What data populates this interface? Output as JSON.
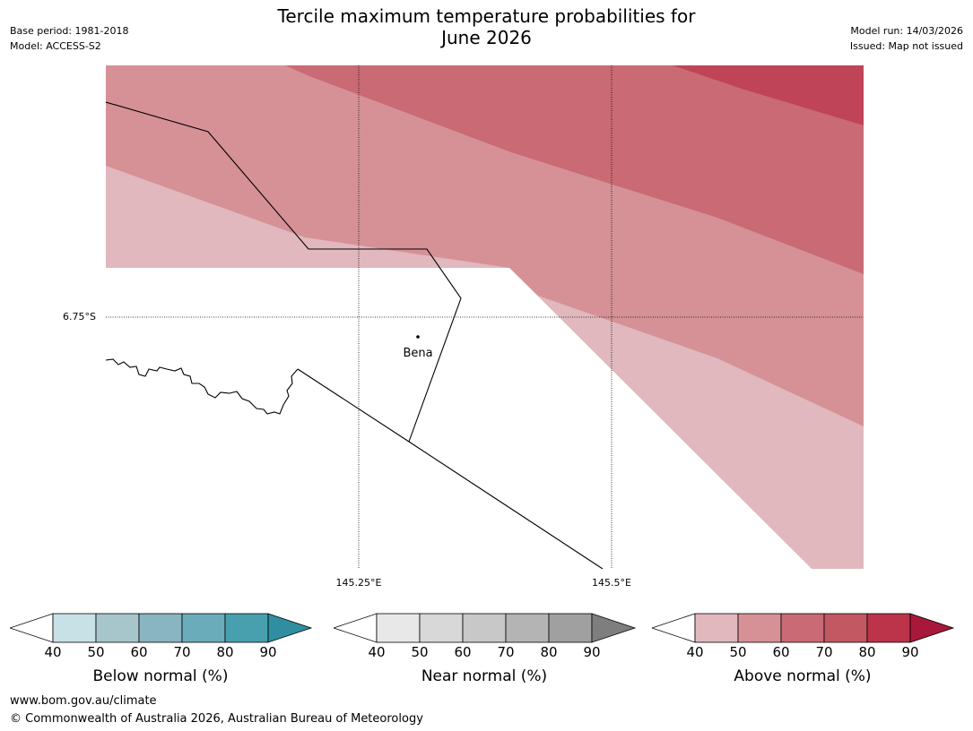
{
  "title": {
    "line1": "Tercile maximum temperature probabilities for",
    "line2": "June 2026"
  },
  "meta": {
    "base_period": "Base period: 1981-2018",
    "model": "Model: ACCESS-S2",
    "model_run": "Model run: 14/03/2026",
    "issued": "Issued: Map not issued"
  },
  "map": {
    "lat_label": "6.75°S",
    "lon_labels": [
      "145.25°E",
      "145.5°E"
    ],
    "town": "Bena"
  },
  "colorbars": [
    {
      "title": "Below normal (%)",
      "ticks": [
        "40",
        "50",
        "60",
        "70",
        "80",
        "90"
      ],
      "colors": [
        "#c8e1e6",
        "#a7c6cc",
        "#89b4c2",
        "#6aacba",
        "#48a0ae",
        "#2f8fa0"
      ]
    },
    {
      "title": "Near normal (%)",
      "ticks": [
        "40",
        "50",
        "60",
        "70",
        "80",
        "90"
      ],
      "colors": [
        "#e8e8e8",
        "#d8d8d8",
        "#c8c8c8",
        "#b4b4b4",
        "#a0a0a0",
        "#7e7e7e"
      ]
    },
    {
      "title": "Above normal (%)",
      "ticks": [
        "40",
        "50",
        "60",
        "70",
        "80",
        "90"
      ],
      "colors": [
        "#e0b8bd",
        "#d59196",
        "#c96a74",
        "#c25862",
        "#bb3449",
        "#a8183a"
      ]
    }
  ],
  "footer": {
    "url": "www.bom.gov.au/climate",
    "copyright": "© Commonwealth of Australia 2026, Australian Bureau of Meteorology"
  }
}
